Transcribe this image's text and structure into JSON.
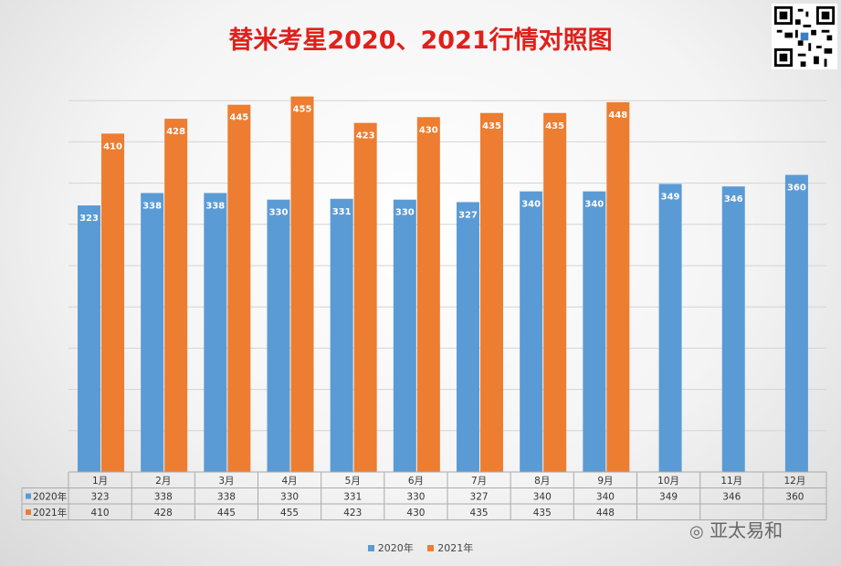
{
  "title": "替米考星2020、2021行情对照图",
  "watermark": "亚太易和",
  "colors": {
    "s2020": "#5b9bd5",
    "s2021": "#ed7d31",
    "title": "#e0201b"
  },
  "chart_data": {
    "type": "bar",
    "title": "替米考星2020、2021行情对照图",
    "categories": [
      "1月",
      "2月",
      "3月",
      "4月",
      "5月",
      "6月",
      "7月",
      "8月",
      "9月",
      "10月",
      "11月",
      "12月"
    ],
    "series": [
      {
        "name": "2020年",
        "values": [
          323,
          338,
          338,
          330,
          331,
          330,
          327,
          340,
          340,
          349,
          346,
          360
        ]
      },
      {
        "name": "2021年",
        "values": [
          410,
          428,
          445,
          455,
          423,
          430,
          435,
          435,
          448,
          null,
          null,
          null
        ]
      }
    ],
    "data_table": true,
    "grid": true,
    "legend": "bottom"
  }
}
